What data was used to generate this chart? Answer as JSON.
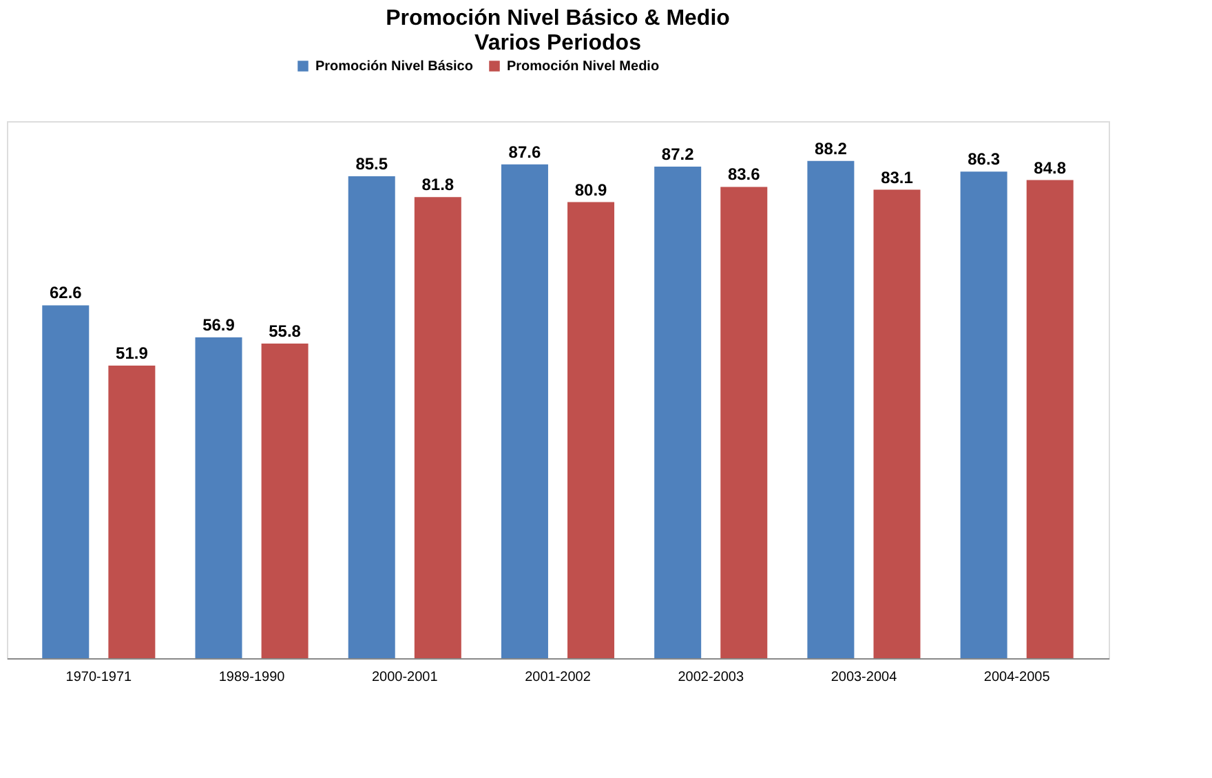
{
  "chart_data": {
    "type": "bar",
    "title": "Promoción Nivel Básico & Medio",
    "subtitle": "Varios Periodos",
    "categories": [
      "1970-1971",
      "1989-1990",
      "2000-2001",
      "2001-2002",
      "2002-2003",
      "2003-2004",
      "2004-2005"
    ],
    "series": [
      {
        "name": "Promoción Nivel Básico",
        "color": "#4f81bd",
        "values": [
          62.6,
          56.9,
          85.5,
          87.6,
          87.2,
          88.2,
          86.3
        ]
      },
      {
        "name": "Promoción Nivel Medio",
        "color": "#c0504d",
        "values": [
          51.9,
          55.8,
          81.8,
          80.9,
          83.6,
          83.1,
          84.8
        ]
      }
    ],
    "data_labels": true,
    "legend": "top",
    "grid": false
  }
}
